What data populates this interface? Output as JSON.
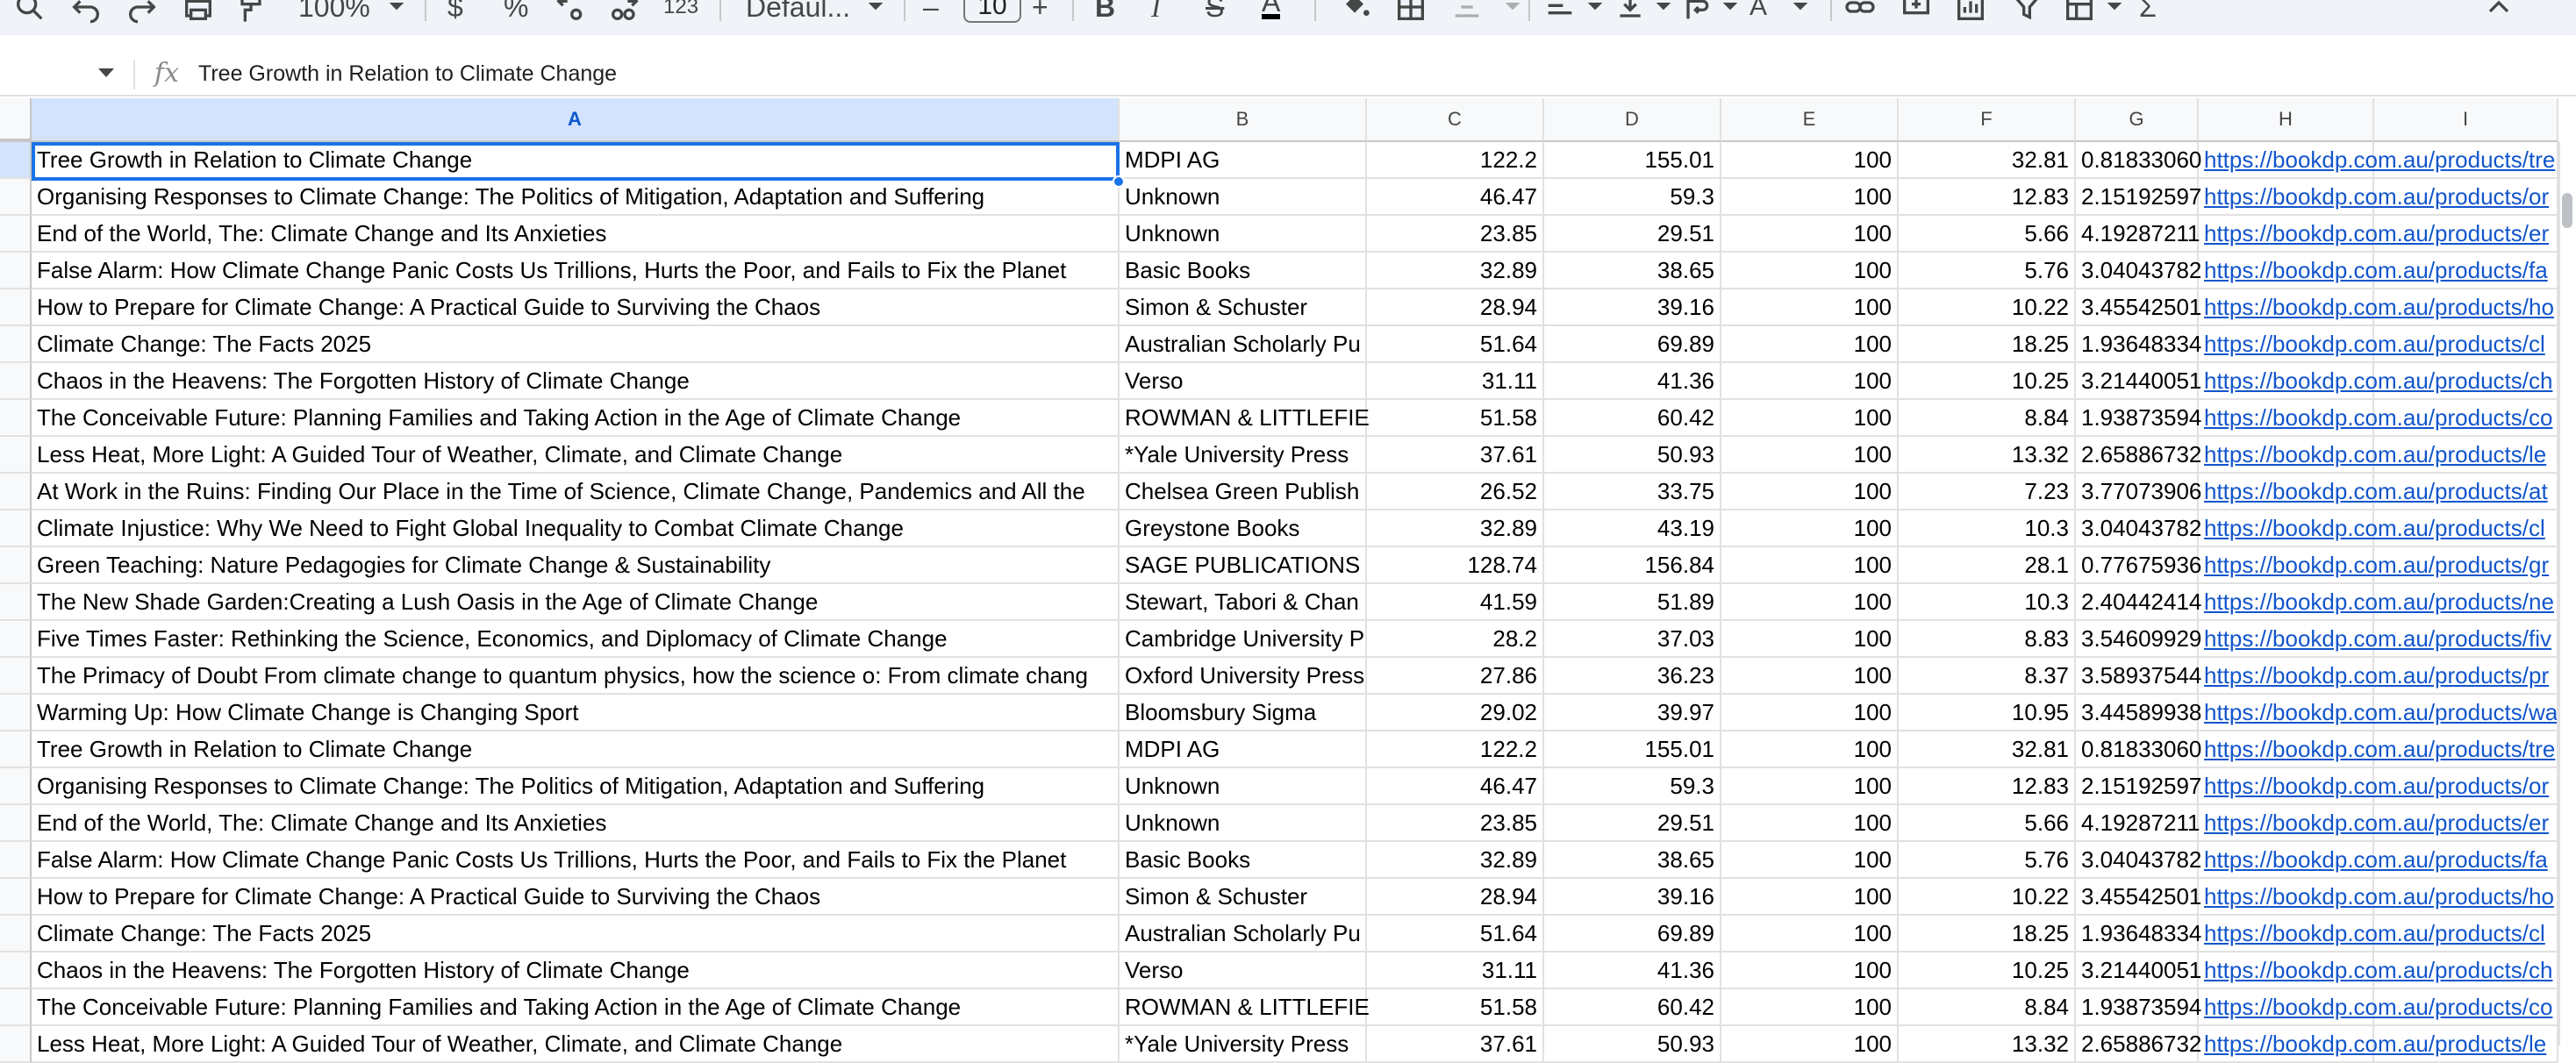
{
  "toolbar": {
    "zoom": "100%",
    "currency": "$",
    "percent": "%",
    "more_formats": "123",
    "font": "Defaul...",
    "font_size": "10"
  },
  "formula_bar": {
    "fx_label": "fx",
    "content": "Tree Growth in Relation to Climate Change"
  },
  "columns": [
    "A",
    "B",
    "C",
    "D",
    "E",
    "F",
    "G",
    "H",
    "I"
  ],
  "rows": [
    {
      "a": "Tree Growth in Relation to Climate Change",
      "b": "MDPI AG",
      "c": "122.2",
      "d": "155.01",
      "e": "100",
      "f": "32.81",
      "g": "0.81833060",
      "h": "https://bookdp.com.au/products/tre"
    },
    {
      "a": "Organising Responses to Climate Change: The Politics of Mitigation, Adaptation and Suffering",
      "b": "Unknown",
      "c": "46.47",
      "d": "59.3",
      "e": "100",
      "f": "12.83",
      "g": "2.15192597",
      "h": "https://bookdp.com.au/products/or"
    },
    {
      "a": "End of the World, The: Climate Change and Its Anxieties",
      "b": "Unknown",
      "c": "23.85",
      "d": "29.51",
      "e": "100",
      "f": "5.66",
      "g": "4.19287211",
      "h": "https://bookdp.com.au/products/er"
    },
    {
      "a": "False Alarm: How Climate Change Panic Costs Us Trillions, Hurts the Poor, and Fails to Fix the Planet",
      "b": "Basic Books",
      "c": "32.89",
      "d": "38.65",
      "e": "100",
      "f": "5.76",
      "g": "3.04043782",
      "h": "https://bookdp.com.au/products/fa"
    },
    {
      "a": "How to Prepare for Climate Change: A Practical Guide to Surviving the Chaos",
      "b": "Simon & Schuster",
      "c": "28.94",
      "d": "39.16",
      "e": "100",
      "f": "10.22",
      "g": "3.45542501",
      "h": "https://bookdp.com.au/products/ho"
    },
    {
      "a": "Climate Change: The Facts 2025",
      "b": "Australian Scholarly Pu",
      "c": "51.64",
      "d": "69.89",
      "e": "100",
      "f": "18.25",
      "g": "1.93648334",
      "h": "https://bookdp.com.au/products/cl"
    },
    {
      "a": "Chaos in the Heavens: The Forgotten History of Climate Change",
      "b": "Verso",
      "c": "31.11",
      "d": "41.36",
      "e": "100",
      "f": "10.25",
      "g": "3.21440051",
      "h": "https://bookdp.com.au/products/ch"
    },
    {
      "a": "The Conceivable Future: Planning Families and Taking Action in the Age of Climate Change",
      "b": "ROWMAN & LITTLEFIE",
      "c": "51.58",
      "d": "60.42",
      "e": "100",
      "f": "8.84",
      "g": "1.93873594",
      "h": "https://bookdp.com.au/products/co"
    },
    {
      "a": "Less Heat, More Light: A Guided Tour of Weather, Climate, and Climate Change",
      "b": "*Yale University Press",
      "c": "37.61",
      "d": "50.93",
      "e": "100",
      "f": "13.32",
      "g": "2.65886732",
      "h": "https://bookdp.com.au/products/le"
    },
    {
      "a": "At Work in the Ruins: Finding Our Place in the Time of Science, Climate Change, Pandemics and All the",
      "b": "Chelsea Green Publish",
      "c": "26.52",
      "d": "33.75",
      "e": "100",
      "f": "7.23",
      "g": "3.77073906",
      "h": "https://bookdp.com.au/products/at"
    },
    {
      "a": "Climate Injustice: Why We Need to Fight Global Inequality to Combat Climate Change",
      "b": "Greystone Books",
      "c": "32.89",
      "d": "43.19",
      "e": "100",
      "f": "10.3",
      "g": "3.04043782",
      "h": "https://bookdp.com.au/products/cl"
    },
    {
      "a": "Green Teaching: Nature Pedagogies for Climate Change & Sustainability",
      "b": "SAGE PUBLICATIONS",
      "c": "128.74",
      "d": "156.84",
      "e": "100",
      "f": "28.1",
      "g": "0.77675936",
      "h": "https://bookdp.com.au/products/gr"
    },
    {
      "a": "The New Shade Garden:Creating a Lush Oasis in the Age of Climate Change",
      "b": "Stewart, Tabori & Chan",
      "c": "41.59",
      "d": "51.89",
      "e": "100",
      "f": "10.3",
      "g": "2.40442414",
      "h": "https://bookdp.com.au/products/ne"
    },
    {
      "a": "Five Times Faster: Rethinking the Science, Economics, and Diplomacy of Climate Change",
      "b": "Cambridge University P",
      "c": "28.2",
      "d": "37.03",
      "e": "100",
      "f": "8.83",
      "g": "3.54609929",
      "h": "https://bookdp.com.au/products/fiv"
    },
    {
      "a": "The Primacy of Doubt From climate change to quantum physics, how the science o: From climate chang",
      "b": "Oxford University Press",
      "c": "27.86",
      "d": "36.23",
      "e": "100",
      "f": "8.37",
      "g": "3.58937544",
      "h": "https://bookdp.com.au/products/pr"
    },
    {
      "a": "Warming Up: How Climate Change is Changing Sport",
      "b": "Bloomsbury Sigma",
      "c": "29.02",
      "d": "39.97",
      "e": "100",
      "f": "10.95",
      "g": "3.44589938",
      "h": "https://bookdp.com.au/products/wa"
    },
    {
      "a": "Tree Growth in Relation to Climate Change",
      "b": "MDPI AG",
      "c": "122.2",
      "d": "155.01",
      "e": "100",
      "f": "32.81",
      "g": "0.81833060",
      "h": "https://bookdp.com.au/products/tre"
    },
    {
      "a": "Organising Responses to Climate Change: The Politics of Mitigation, Adaptation and Suffering",
      "b": "Unknown",
      "c": "46.47",
      "d": "59.3",
      "e": "100",
      "f": "12.83",
      "g": "2.15192597",
      "h": "https://bookdp.com.au/products/or"
    },
    {
      "a": "End of the World, The: Climate Change and Its Anxieties",
      "b": "Unknown",
      "c": "23.85",
      "d": "29.51",
      "e": "100",
      "f": "5.66",
      "g": "4.19287211",
      "h": "https://bookdp.com.au/products/er"
    },
    {
      "a": "False Alarm: How Climate Change Panic Costs Us Trillions, Hurts the Poor, and Fails to Fix the Planet",
      "b": "Basic Books",
      "c": "32.89",
      "d": "38.65",
      "e": "100",
      "f": "5.76",
      "g": "3.04043782",
      "h": "https://bookdp.com.au/products/fa"
    },
    {
      "a": "How to Prepare for Climate Change: A Practical Guide to Surviving the Chaos",
      "b": "Simon & Schuster",
      "c": "28.94",
      "d": "39.16",
      "e": "100",
      "f": "10.22",
      "g": "3.45542501",
      "h": "https://bookdp.com.au/products/ho"
    },
    {
      "a": "Climate Change: The Facts 2025",
      "b": "Australian Scholarly Pu",
      "c": "51.64",
      "d": "69.89",
      "e": "100",
      "f": "18.25",
      "g": "1.93648334",
      "h": "https://bookdp.com.au/products/cl"
    },
    {
      "a": "Chaos in the Heavens: The Forgotten History of Climate Change",
      "b": "Verso",
      "c": "31.11",
      "d": "41.36",
      "e": "100",
      "f": "10.25",
      "g": "3.21440051",
      "h": "https://bookdp.com.au/products/ch"
    },
    {
      "a": "The Conceivable Future: Planning Families and Taking Action in the Age of Climate Change",
      "b": "ROWMAN & LITTLEFIE",
      "c": "51.58",
      "d": "60.42",
      "e": "100",
      "f": "8.84",
      "g": "1.93873594",
      "h": "https://bookdp.com.au/products/co"
    },
    {
      "a": "Less Heat, More Light: A Guided Tour of Weather, Climate, and Climate Change",
      "b": "*Yale University Press",
      "c": "37.61",
      "d": "50.93",
      "e": "100",
      "f": "13.32",
      "g": "2.65886732",
      "h": "https://bookdp.com.au/products/le"
    }
  ]
}
